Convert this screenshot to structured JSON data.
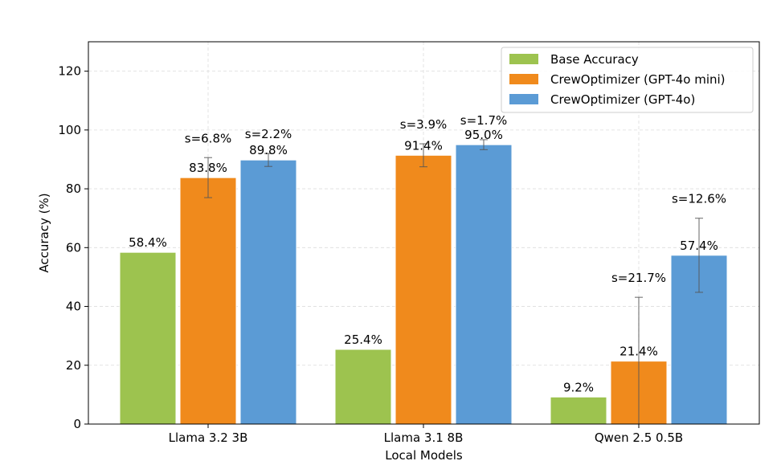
{
  "chart_data": {
    "type": "bar",
    "title": "",
    "xlabel": "Local Models",
    "ylabel": "Accuracy (%)",
    "ylim": [
      0,
      130
    ],
    "yticks": [
      0,
      20,
      40,
      60,
      80,
      100,
      120
    ],
    "grid": true,
    "legend_position": "top-right",
    "categories": [
      "Llama 3.2 3B",
      "Llama 3.1 8B",
      "Qwen 2.5 0.5B"
    ],
    "series": [
      {
        "name": "Base Accuracy",
        "color": "#9DC34F",
        "values": [
          58.4,
          25.4,
          9.2
        ],
        "labels": [
          "58.4%",
          "25.4%",
          "9.2%"
        ],
        "errors": null,
        "std_labels": null
      },
      {
        "name": "CrewOptimizer (GPT-4o mini)",
        "color": "#F08A1C",
        "values": [
          83.8,
          91.4,
          21.4
        ],
        "labels": [
          "83.8%",
          "91.4%",
          "21.4%"
        ],
        "errors": [
          6.8,
          3.9,
          21.7
        ],
        "std_labels": [
          "s=6.8%",
          "s=3.9%",
          "s=21.7%"
        ]
      },
      {
        "name": "CrewOptimizer (GPT-4o)",
        "color": "#5B9BD5",
        "values": [
          89.8,
          95.0,
          57.4
        ],
        "labels": [
          "89.8%",
          "95.0%",
          "57.4%"
        ],
        "errors": [
          2.2,
          1.7,
          12.6
        ],
        "std_labels": [
          "s=2.2%",
          "s=1.7%",
          "s=12.6%"
        ]
      }
    ]
  }
}
